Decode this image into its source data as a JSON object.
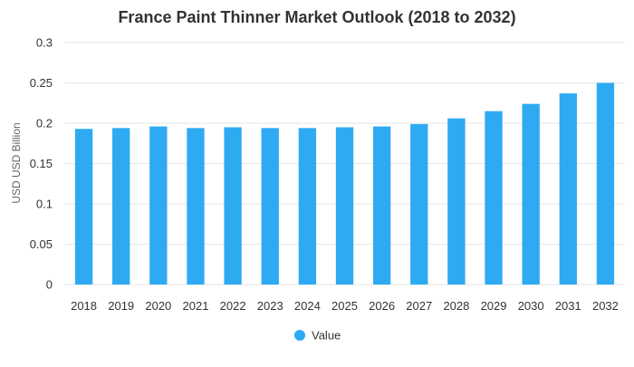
{
  "chart_data": {
    "type": "bar",
    "title": "France Paint Thinner Market Outlook (2018 to 2032)",
    "xlabel": "",
    "ylabel": "USD USD Billion",
    "ylim": [
      0,
      0.3
    ],
    "yticks": [
      "0",
      "0.05",
      "0.1",
      "0.15",
      "0.2",
      "0.25",
      "0.3"
    ],
    "grid": true,
    "legend_position": "bottom-center",
    "categories": [
      "2018",
      "2019",
      "2020",
      "2021",
      "2022",
      "2023",
      "2024",
      "2025",
      "2026",
      "2027",
      "2028",
      "2029",
      "2030",
      "2031",
      "2032"
    ],
    "series": [
      {
        "name": "Value",
        "color": "#2eaaf3",
        "values": [
          0.193,
          0.194,
          0.196,
          0.194,
          0.195,
          0.194,
          0.194,
          0.195,
          0.196,
          0.199,
          0.206,
          0.215,
          0.224,
          0.237,
          0.25
        ]
      }
    ]
  },
  "colors": {
    "bar": "#2eaaf3",
    "grid": "#e6e6e6",
    "axis_text": "#333333",
    "title_text": "#333333"
  }
}
